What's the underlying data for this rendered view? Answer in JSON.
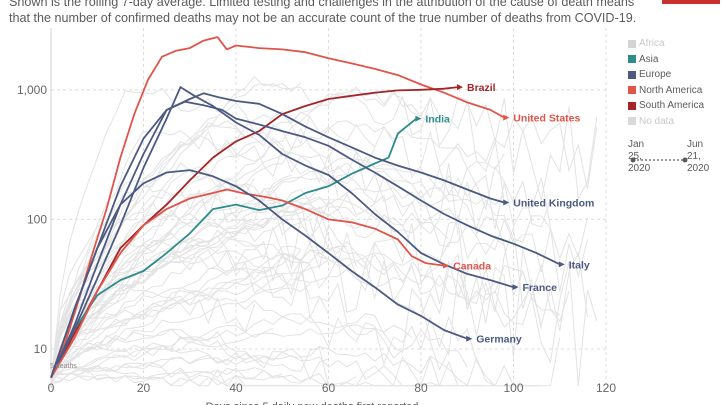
{
  "header": {
    "subtitle_line1": "Shown is the rolling 7-day average. Limited testing and challenges in the attribution of the cause of death means",
    "subtitle_line2": "that the number of confirmed deaths may not be an accurate count of the true number of deaths from COVID-19."
  },
  "colors": {
    "brand": "#c8312e",
    "background_lines": "#e3e3e3",
    "grid": "#dcdcdc",
    "axis_text": "#666666"
  },
  "legend": {
    "items": [
      {
        "label": "Africa",
        "color": "#d3d3d3",
        "muted": true
      },
      {
        "label": "Asia",
        "color": "#2f8c8c",
        "muted": false
      },
      {
        "label": "Europe",
        "color": "#4c5a82",
        "muted": false
      },
      {
        "label": "North America",
        "color": "#e0544a",
        "muted": false
      },
      {
        "label": "South America",
        "color": "#a3262a",
        "muted": false
      },
      {
        "label": "No data",
        "color": "#d9d9d9",
        "muted": true
      }
    ]
  },
  "time_range": {
    "start_label": "Jan 25, 2020",
    "end_label": "Jun 21, 2020",
    "start_lines": [
      "Jan",
      "25,",
      "2020"
    ],
    "end_lines": [
      "Jun",
      "21,",
      "2020"
    ]
  },
  "chart_data": {
    "type": "line",
    "title": "",
    "xlabel": "Days since 5 daily new deaths first reported",
    "ylabel": "",
    "y_scale": "log",
    "xlim": [
      0,
      120
    ],
    "ylim": [
      5,
      3000
    ],
    "x_ticks": [
      0,
      20,
      40,
      60,
      80,
      100,
      120
    ],
    "y_ticks": [
      10,
      100,
      1000
    ],
    "y_tick_labels": [
      "10",
      "100",
      "1,000"
    ],
    "start_annotation": "5 deaths",
    "grid": true,
    "legend_position": "right",
    "series": [
      {
        "name": "United States",
        "region": "North America",
        "color": "#e0544a",
        "x": [
          0,
          3,
          6,
          9,
          12,
          15,
          18,
          21,
          24,
          27,
          30,
          33,
          36,
          38,
          40,
          45,
          50,
          55,
          60,
          65,
          70,
          75,
          80,
          85,
          90,
          95,
          98
        ],
        "y": [
          6,
          11,
          24,
          55,
          120,
          300,
          650,
          1200,
          1800,
          2000,
          2100,
          2400,
          2550,
          2050,
          2200,
          2100,
          2050,
          1950,
          1750,
          1600,
          1450,
          1300,
          1100,
          950,
          800,
          700,
          610
        ]
      },
      {
        "name": "Brazil",
        "region": "South America",
        "color": "#a3262a",
        "x": [
          0,
          5,
          10,
          15,
          20,
          25,
          30,
          35,
          40,
          45,
          50,
          55,
          60,
          65,
          70,
          75,
          80,
          85,
          88
        ],
        "y": [
          6,
          13,
          28,
          60,
          90,
          130,
          200,
          300,
          400,
          480,
          650,
          750,
          850,
          900,
          950,
          990,
          1000,
          1020,
          1050
        ]
      },
      {
        "name": "India",
        "region": "Asia",
        "color": "#2f8c8c",
        "x": [
          0,
          5,
          10,
          15,
          20,
          25,
          30,
          35,
          40,
          45,
          50,
          55,
          60,
          65,
          70,
          73,
          75,
          79
        ],
        "y": [
          6,
          14,
          26,
          34,
          40,
          55,
          78,
          120,
          130,
          118,
          128,
          160,
          180,
          225,
          270,
          300,
          460,
          600
        ]
      },
      {
        "name": "United Kingdom",
        "region": "Europe",
        "color": "#4c5a82",
        "x": [
          0,
          5,
          10,
          15,
          20,
          25,
          30,
          33,
          36,
          40,
          45,
          50,
          55,
          60,
          65,
          70,
          75,
          80,
          85,
          90,
          95,
          98
        ],
        "y": [
          6,
          15,
          45,
          130,
          320,
          700,
          850,
          940,
          880,
          820,
          780,
          650,
          520,
          430,
          360,
          300,
          260,
          230,
          200,
          170,
          145,
          135
        ]
      },
      {
        "name": "Italy",
        "region": "Europe",
        "color": "#4c5a82",
        "x": [
          0,
          5,
          10,
          15,
          20,
          25,
          29,
          33,
          37,
          40,
          45,
          50,
          55,
          60,
          65,
          70,
          75,
          80,
          85,
          90,
          95,
          100,
          105,
          110
        ],
        "y": [
          6,
          20,
          60,
          180,
          420,
          700,
          810,
          760,
          700,
          600,
          540,
          480,
          430,
          370,
          290,
          230,
          180,
          140,
          110,
          90,
          75,
          65,
          55,
          45
        ]
      },
      {
        "name": "France",
        "region": "Europe",
        "color": "#4c5a82",
        "x": [
          0,
          5,
          10,
          15,
          20,
          25,
          28,
          31,
          35,
          40,
          45,
          50,
          55,
          60,
          65,
          70,
          75,
          80,
          85,
          90,
          95,
          100
        ],
        "y": [
          6,
          14,
          35,
          90,
          250,
          600,
          1050,
          900,
          750,
          560,
          450,
          320,
          260,
          220,
          160,
          110,
          80,
          55,
          45,
          38,
          34,
          30
        ]
      },
      {
        "name": "Canada",
        "region": "North America",
        "color": "#e0544a",
        "x": [
          0,
          5,
          10,
          15,
          20,
          25,
          30,
          35,
          38,
          42,
          46,
          50,
          55,
          60,
          65,
          70,
          75,
          78,
          81,
          85
        ],
        "y": [
          6,
          12,
          28,
          55,
          90,
          120,
          145,
          160,
          170,
          158,
          150,
          140,
          120,
          100,
          95,
          85,
          70,
          52,
          46,
          44
        ]
      },
      {
        "name": "Germany",
        "region": "Europe",
        "color": "#4c5a82",
        "x": [
          0,
          5,
          10,
          15,
          20,
          25,
          30,
          35,
          40,
          45,
          50,
          55,
          60,
          65,
          70,
          75,
          80,
          85,
          90
        ],
        "y": [
          6,
          20,
          60,
          130,
          190,
          230,
          240,
          215,
          180,
          140,
          100,
          75,
          55,
          40,
          30,
          22,
          18,
          14,
          12
        ]
      }
    ]
  }
}
